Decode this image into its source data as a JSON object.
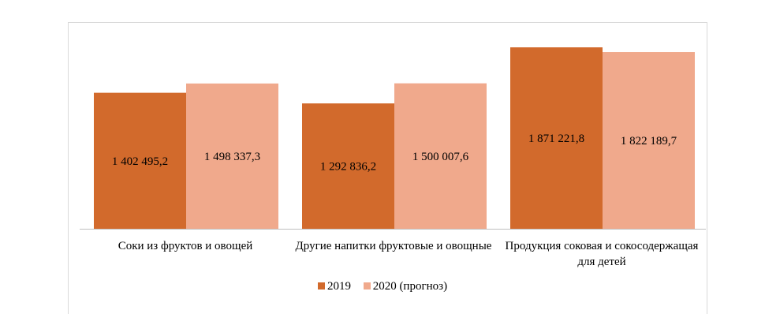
{
  "chart_data": {
    "type": "bar",
    "title": "",
    "xlabel": "",
    "ylabel": "",
    "categories": [
      "Соки из фруктов и овощей",
      "Другие напитки фруктовые и овощные",
      "Продукция соковая и сокосодержащая для детей"
    ],
    "series": [
      {
        "name": "2019",
        "color": "#d26a2c",
        "values": [
          1402495.2,
          1292836.2,
          1871221.8
        ],
        "labels": [
          "1 402 495,2",
          "1 292 836,2",
          "1 871 221,8"
        ]
      },
      {
        "name": "2020 (прогноз)",
        "color": "#f0a98c",
        "values": [
          1498337.3,
          1500007.6,
          1822189.7
        ],
        "labels": [
          "1 498 337,3",
          "1 500 007,6",
          "1 822 189,7"
        ]
      }
    ],
    "ylim": [
      0,
      2000000
    ],
    "grid": false,
    "legend_position": "bottom"
  }
}
